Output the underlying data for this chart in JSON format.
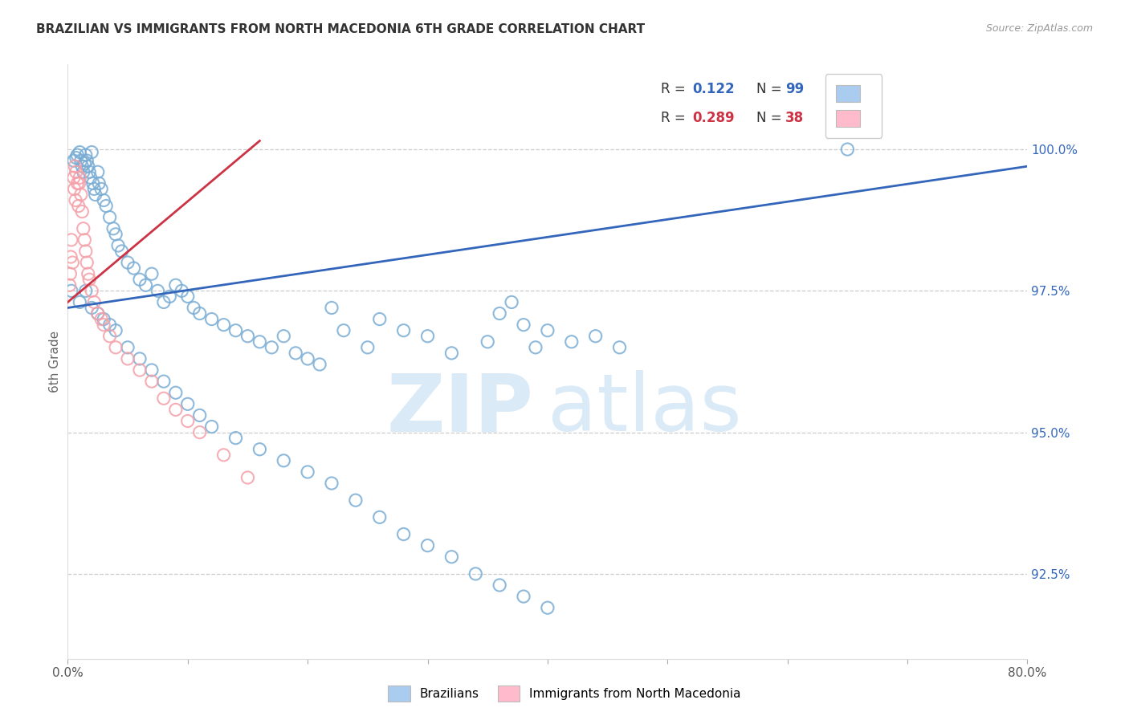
{
  "title": "BRAZILIAN VS IMMIGRANTS FROM NORTH MACEDONIA 6TH GRADE CORRELATION CHART",
  "source": "Source: ZipAtlas.com",
  "ylabel": "6th Grade",
  "x_min": 0.0,
  "x_max": 80.0,
  "y_min": 91.0,
  "y_max": 101.5,
  "yticks": [
    92.5,
    95.0,
    97.5,
    100.0
  ],
  "ytick_labels": [
    "92.5%",
    "95.0%",
    "97.5%",
    "100.0%"
  ],
  "xticks": [
    0.0,
    10.0,
    20.0,
    30.0,
    40.0,
    50.0,
    60.0,
    70.0,
    80.0
  ],
  "blue_color": "#7AADD4",
  "pink_color": "#F4A0A8",
  "blue_line_color": "#3366BB",
  "pink_line_color": "#CC3344",
  "watermark_color": "#DAEAF7",
  "legend_box_blue": "#AACCEE",
  "legend_box_pink": "#FFBBCC",
  "blue_scatter_x": [
    0.3,
    0.5,
    0.7,
    0.8,
    1.0,
    1.1,
    1.2,
    1.3,
    1.4,
    1.5,
    1.6,
    1.7,
    1.8,
    1.9,
    2.0,
    2.1,
    2.2,
    2.3,
    2.5,
    2.6,
    2.8,
    3.0,
    3.2,
    3.5,
    3.8,
    4.0,
    4.2,
    4.5,
    5.0,
    5.5,
    6.0,
    6.5,
    7.0,
    7.5,
    8.0,
    8.5,
    9.0,
    9.5,
    10.0,
    10.5,
    11.0,
    12.0,
    13.0,
    14.0,
    15.0,
    16.0,
    17.0,
    18.0,
    19.0,
    20.0,
    21.0,
    22.0,
    23.0,
    25.0,
    26.0,
    28.0,
    30.0,
    32.0,
    35.0,
    36.0,
    37.0,
    38.0,
    39.0,
    40.0,
    42.0,
    44.0,
    46.0,
    65.0,
    1.0,
    1.5,
    2.0,
    2.5,
    3.0,
    3.5,
    4.0,
    5.0,
    6.0,
    7.0,
    8.0,
    9.0,
    10.0,
    11.0,
    12.0,
    14.0,
    16.0,
    18.0,
    20.0,
    22.0,
    24.0,
    26.0,
    28.0,
    30.0,
    32.0,
    34.0,
    36.0,
    38.0,
    40.0
  ],
  "blue_scatter_y": [
    97.5,
    99.8,
    99.85,
    99.9,
    99.95,
    99.8,
    99.7,
    99.6,
    99.75,
    99.9,
    99.8,
    99.7,
    99.6,
    99.5,
    99.95,
    99.4,
    99.3,
    99.2,
    99.6,
    99.4,
    99.3,
    99.1,
    99.0,
    98.8,
    98.6,
    98.5,
    98.3,
    98.2,
    98.0,
    97.9,
    97.7,
    97.6,
    97.8,
    97.5,
    97.3,
    97.4,
    97.6,
    97.5,
    97.4,
    97.2,
    97.1,
    97.0,
    96.9,
    96.8,
    96.7,
    96.6,
    96.5,
    96.7,
    96.4,
    96.3,
    96.2,
    97.2,
    96.8,
    96.5,
    97.0,
    96.8,
    96.7,
    96.4,
    96.6,
    97.1,
    97.3,
    96.9,
    96.5,
    96.8,
    96.6,
    96.7,
    96.5,
    100.0,
    97.3,
    97.5,
    97.2,
    97.1,
    97.0,
    96.9,
    96.8,
    96.5,
    96.3,
    96.1,
    95.9,
    95.7,
    95.5,
    95.3,
    95.1,
    94.9,
    94.7,
    94.5,
    94.3,
    94.1,
    93.8,
    93.5,
    93.2,
    93.0,
    92.8,
    92.5,
    92.3,
    92.1,
    91.9
  ],
  "pink_scatter_x": [
    0.2,
    0.3,
    0.4,
    0.5,
    0.6,
    0.7,
    0.8,
    0.9,
    1.0,
    1.1,
    1.2,
    1.3,
    1.4,
    1.5,
    1.6,
    1.7,
    1.8,
    2.0,
    2.2,
    2.5,
    2.8,
    3.0,
    3.5,
    4.0,
    5.0,
    6.0,
    7.0,
    8.0,
    9.0,
    10.0,
    11.0,
    13.0,
    15.0,
    0.15,
    0.25,
    0.55,
    0.65,
    0.95
  ],
  "pink_scatter_y": [
    97.8,
    98.4,
    98.0,
    99.5,
    99.7,
    99.6,
    99.4,
    99.0,
    99.5,
    99.2,
    98.9,
    98.6,
    98.4,
    98.2,
    98.0,
    97.8,
    97.7,
    97.5,
    97.3,
    97.1,
    97.0,
    96.9,
    96.7,
    96.5,
    96.3,
    96.1,
    95.9,
    95.6,
    95.4,
    95.2,
    95.0,
    94.6,
    94.2,
    97.6,
    98.1,
    99.3,
    99.1,
    99.4
  ],
  "blue_trendline_x": [
    0.0,
    80.0
  ],
  "blue_trendline_y": [
    97.2,
    99.7
  ],
  "pink_trendline_x": [
    0.0,
    16.0
  ],
  "pink_trendline_y": [
    97.3,
    100.15
  ]
}
